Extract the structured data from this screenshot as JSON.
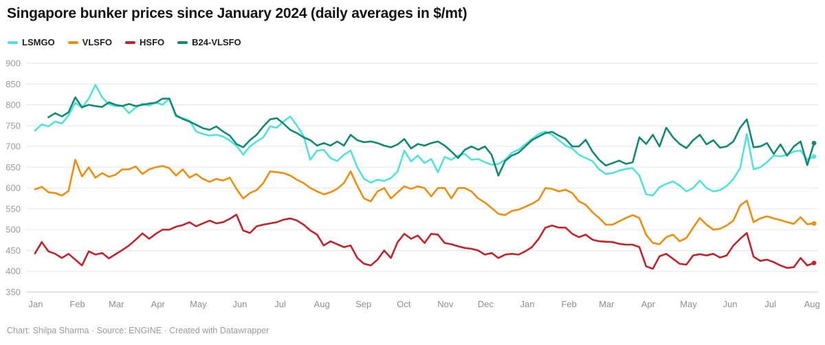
{
  "header": {
    "title": "Singapore bunker prices since January 2024 (daily averages in $/mt)"
  },
  "footer": {
    "text": "Chart: Shilpa Sharma · Source: ENGINE · Created with Datawrapper"
  },
  "chart_data": {
    "type": "line",
    "title": "Singapore bunker prices since January 2024 (daily averages in $/mt)",
    "unit": "$/mt",
    "ylim": [
      350,
      900
    ],
    "yticks": [
      350,
      400,
      450,
      500,
      550,
      600,
      650,
      700,
      750,
      800,
      850,
      900
    ],
    "grid": "horizontal-only",
    "legend_position": "top-left",
    "x_axis": {
      "unit": "days since 2024-01-01",
      "ticks": [
        {
          "label": "Jan",
          "day": 0
        },
        {
          "label": "Feb",
          "day": 31
        },
        {
          "label": "Mar",
          "day": 60
        },
        {
          "label": "Apr",
          "day": 91
        },
        {
          "label": "May",
          "day": 121
        },
        {
          "label": "Jun",
          "day": 152
        },
        {
          "label": "Jul",
          "day": 182
        },
        {
          "label": "Aug",
          "day": 213
        },
        {
          "label": "Sep",
          "day": 244
        },
        {
          "label": "Oct",
          "day": 274
        },
        {
          "label": "Nov",
          "day": 305
        },
        {
          "label": "Dec",
          "day": 335
        },
        {
          "label": "Jan",
          "day": 366
        },
        {
          "label": "Feb",
          "day": 397
        },
        {
          "label": "Mar",
          "day": 425
        },
        {
          "label": "Apr",
          "day": 456
        },
        {
          "label": "May",
          "day": 486
        },
        {
          "label": "Jun",
          "day": 517
        },
        {
          "label": "Jul",
          "day": 547
        },
        {
          "label": "Aug",
          "day": 578
        }
      ]
    },
    "series": [
      {
        "name": "LSMGO",
        "color": "#4fe3dc",
        "start_day": 2,
        "step": 5,
        "values": [
          738,
          753,
          748,
          760,
          755,
          775,
          805,
          793,
          815,
          848,
          818,
          801,
          797,
          798,
          780,
          793,
          803,
          798,
          806,
          800,
          815,
          772,
          768,
          762,
          736,
          730,
          726,
          728,
          724,
          714,
          702,
          680,
          700,
          712,
          722,
          748,
          745,
          760,
          772,
          750,
          725,
          668,
          690,
          692,
          672,
          665,
          680,
          690,
          650,
          622,
          613,
          620,
          617,
          624,
          640,
          690,
          664,
          678,
          660,
          670,
          638,
          675,
          668,
          678,
          682,
          668,
          670,
          662,
          656,
          658,
          668,
          685,
          692,
          705,
          718,
          730,
          736,
          728,
          715,
          702,
          695,
          680,
          672,
          665,
          645,
          634,
          636,
          642,
          646,
          648,
          630,
          585,
          582,
          602,
          610,
          616,
          606,
          592,
          600,
          618,
          600,
          592,
          595,
          605,
          622,
          648,
          730,
          645,
          650,
          662,
          678,
          676,
          680,
          688,
          690,
          668,
          676
        ]
      },
      {
        "name": "VLSFO",
        "color": "#f28c0d",
        "start_day": 2,
        "step": 5,
        "values": [
          597,
          603,
          590,
          588,
          582,
          593,
          668,
          628,
          650,
          625,
          636,
          627,
          632,
          645,
          645,
          652,
          634,
          645,
          650,
          653,
          648,
          630,
          645,
          625,
          634,
          622,
          615,
          622,
          618,
          625,
          598,
          575,
          588,
          595,
          612,
          640,
          638,
          636,
          630,
          620,
          612,
          600,
          592,
          585,
          590,
          598,
          612,
          640,
          605,
          575,
          568,
          592,
          600,
          575,
          590,
          604,
          598,
          604,
          600,
          580,
          600,
          600,
          575,
          600,
          600,
          592,
          575,
          565,
          552,
          538,
          535,
          545,
          548,
          555,
          562,
          572,
          600,
          598,
          592,
          596,
          588,
          568,
          560,
          542,
          528,
          512,
          512,
          520,
          528,
          535,
          528,
          488,
          468,
          465,
          482,
          488,
          472,
          480,
          505,
          528,
          512,
          500,
          502,
          510,
          522,
          558,
          570,
          518,
          527,
          532,
          527,
          523,
          518,
          514,
          530,
          513,
          515
        ]
      },
      {
        "name": "HSFO",
        "color": "#c4212a",
        "start_day": 2,
        "step": 5,
        "values": [
          443,
          470,
          448,
          442,
          432,
          442,
          428,
          414,
          448,
          440,
          444,
          431,
          441,
          451,
          462,
          476,
          491,
          478,
          490,
          500,
          500,
          507,
          511,
          518,
          508,
          515,
          522,
          515,
          518,
          526,
          536,
          498,
          492,
          508,
          512,
          515,
          518,
          524,
          527,
          522,
          512,
          498,
          488,
          462,
          472,
          465,
          458,
          462,
          432,
          418,
          414,
          428,
          450,
          432,
          470,
          490,
          478,
          486,
          468,
          490,
          488,
          468,
          465,
          460,
          456,
          454,
          450,
          440,
          444,
          432,
          440,
          442,
          440,
          448,
          458,
          478,
          505,
          510,
          505,
          505,
          490,
          482,
          488,
          476,
          472,
          471,
          470,
          466,
          464,
          464,
          458,
          412,
          406,
          436,
          442,
          430,
          418,
          416,
          438,
          441,
          438,
          442,
          433,
          438,
          462,
          478,
          492,
          435,
          425,
          428,
          422,
          414,
          408,
          410,
          432,
          414,
          420
        ]
      },
      {
        "name": "B24-VLSFO",
        "color": "#0f8a70",
        "start_day": 12,
        "step": 5,
        "values": [
          770,
          780,
          772,
          782,
          818,
          794,
          800,
          797,
          795,
          806,
          800,
          797,
          802,
          797,
          800,
          803,
          805,
          815,
          815,
          775,
          766,
          760,
          752,
          744,
          740,
          748,
          736,
          726,
          706,
          698,
          715,
          728,
          748,
          765,
          768,
          755,
          740,
          732,
          722,
          715,
          702,
          708,
          702,
          712,
          702,
          728,
          715,
          710,
          712,
          708,
          702,
          698,
          705,
          718,
          695,
          706,
          702,
          708,
          712,
          702,
          688,
          672,
          692,
          700,
          692,
          700,
          680,
          630,
          665,
          678,
          685,
          700,
          715,
          724,
          732,
          735,
          726,
          718,
          700,
          700,
          716,
          688,
          668,
          654,
          660,
          666,
          658,
          662,
          722,
          706,
          728,
          700,
          745,
          722,
          706,
          696,
          715,
          728,
          705,
          715,
          697,
          700,
          712,
          745,
          765,
          698,
          700,
          708,
          682,
          705,
          678,
          700,
          712,
          655,
          708
        ]
      }
    ]
  }
}
